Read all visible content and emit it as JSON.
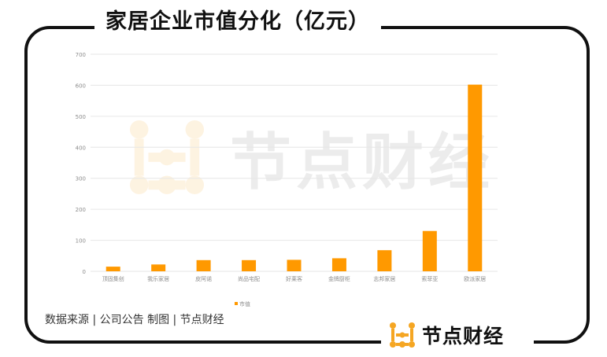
{
  "header": {
    "title": "家居企业市值分化（亿元）"
  },
  "footer": {
    "source_note": "数据来源 | 公司公告  制图 | 节点财经"
  },
  "brand": {
    "name": "节点财经",
    "watermark_text": "节点财经",
    "accent_color": "#f5a623",
    "logo_icon": "dot-grid-logo-icon"
  },
  "colors": {
    "bar": "#ff9900",
    "frame": "#111111",
    "grid": "#e6e6e6",
    "tick_text": "#8c8c8c"
  },
  "chart_data": {
    "type": "bar",
    "categories": [
      "顶固集创",
      "我乐家居",
      "皮阿诺",
      "尚品宅配",
      "好莱客",
      "金牌厨柜",
      "志邦家居",
      "索菲亚",
      "欧派家居"
    ],
    "series": [
      {
        "name": "市值",
        "values": [
          15,
          22,
          36,
          36,
          37,
          42,
          68,
          130,
          602
        ],
        "color": "#ff9900"
      }
    ],
    "ylim": [
      0,
      700
    ],
    "yticks": [
      0,
      100,
      200,
      300,
      400,
      500,
      600,
      700
    ],
    "title": "",
    "xlabel": "",
    "ylabel": "",
    "grid": true,
    "legend_position": "bottom-center"
  }
}
